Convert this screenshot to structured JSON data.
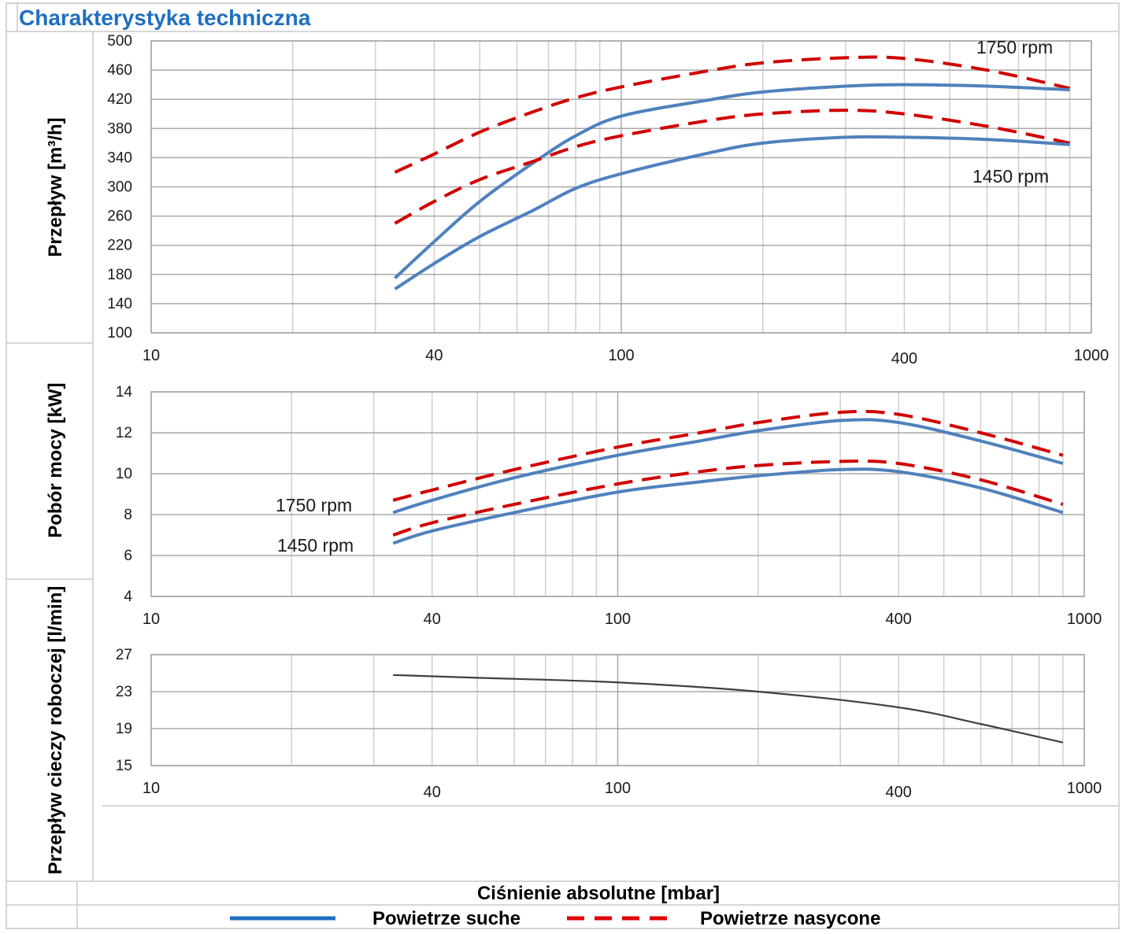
{
  "page": {
    "title": "Charakterystyka techniczna",
    "x_axis_label": "Ciśnienie absolutne [mbar]",
    "legend": [
      {
        "label": "Powietrze suche",
        "style": "solid",
        "color": "#4f81bd"
      },
      {
        "label": "Powietrze nasycone",
        "style": "dashed",
        "color": "#d00000"
      }
    ]
  },
  "chart_data": [
    {
      "type": "line",
      "name": "flow",
      "ylabel": "Przepływ [m³/h]",
      "x_scale": "log",
      "xlim": [
        10,
        1000
      ],
      "x_tick_labels": [
        "10",
        "40",
        "100",
        "400",
        "1000"
      ],
      "x_tick_values": [
        10,
        40,
        100,
        400,
        1000
      ],
      "ylim": [
        100,
        500
      ],
      "y_ticks": [
        100,
        140,
        180,
        220,
        260,
        300,
        340,
        380,
        420,
        460,
        500
      ],
      "annotations": [
        "1750 rpm",
        "1450 rpm"
      ],
      "series": [
        {
          "name": "Powietrze nasycone 1750 rpm",
          "style": "dashed",
          "x": [
            33,
            40,
            50,
            65,
            80,
            100,
            150,
            200,
            300,
            400,
            600,
            900
          ],
          "y": [
            320,
            345,
            375,
            403,
            422,
            437,
            458,
            470,
            477,
            476,
            460,
            435
          ]
        },
        {
          "name": "Powietrze suche 1750 rpm",
          "style": "solid",
          "x": [
            33,
            40,
            50,
            65,
            80,
            100,
            150,
            200,
            300,
            400,
            600,
            900
          ],
          "y": [
            175,
            225,
            280,
            333,
            370,
            397,
            418,
            430,
            438,
            440,
            438,
            433
          ]
        },
        {
          "name": "Powietrze nasycone 1450 rpm",
          "style": "dashed",
          "x": [
            33,
            40,
            50,
            65,
            80,
            100,
            150,
            200,
            300,
            400,
            600,
            900
          ],
          "y": [
            250,
            280,
            310,
            335,
            355,
            370,
            390,
            400,
            405,
            400,
            383,
            360
          ]
        },
        {
          "name": "Powietrze suche 1450 rpm",
          "style": "solid",
          "x": [
            33,
            40,
            50,
            65,
            80,
            100,
            150,
            200,
            300,
            400,
            600,
            900
          ],
          "y": [
            160,
            195,
            232,
            268,
            298,
            318,
            345,
            360,
            368,
            368,
            365,
            358
          ]
        }
      ]
    },
    {
      "type": "line",
      "name": "power",
      "ylabel": "Pobór mocy [kW]",
      "x_scale": "log",
      "xlim": [
        10,
        1000
      ],
      "x_tick_labels": [
        "10",
        "40",
        "100",
        "400",
        "1000"
      ],
      "x_tick_values": [
        10,
        40,
        100,
        400,
        1000
      ],
      "ylim": [
        4,
        14
      ],
      "y_ticks": [
        4,
        6,
        8,
        10,
        12,
        14
      ],
      "annotations": [
        "1750 rpm",
        "1450 rpm"
      ],
      "series": [
        {
          "name": "Powietrze nasycone 1750 rpm",
          "style": "dashed",
          "x": [
            33,
            40,
            60,
            100,
            150,
            200,
            300,
            400,
            600,
            900
          ],
          "y": [
            8.7,
            9.2,
            10.2,
            11.3,
            12.0,
            12.5,
            13.0,
            12.9,
            12.0,
            10.9
          ]
        },
        {
          "name": "Powietrze suche 1750 rpm",
          "style": "solid",
          "x": [
            33,
            40,
            60,
            100,
            150,
            200,
            300,
            400,
            600,
            900
          ],
          "y": [
            8.1,
            8.7,
            9.8,
            10.9,
            11.6,
            12.1,
            12.6,
            12.5,
            11.6,
            10.5
          ]
        },
        {
          "name": "Powietrze nasycone 1450 rpm",
          "style": "dashed",
          "x": [
            33,
            40,
            60,
            100,
            150,
            200,
            300,
            400,
            600,
            900
          ],
          "y": [
            7.0,
            7.6,
            8.5,
            9.5,
            10.1,
            10.4,
            10.6,
            10.5,
            9.7,
            8.5
          ]
        },
        {
          "name": "Powietrze suche 1450 rpm",
          "style": "solid",
          "x": [
            33,
            40,
            60,
            100,
            150,
            200,
            300,
            400,
            600,
            900
          ],
          "y": [
            6.6,
            7.2,
            8.1,
            9.1,
            9.6,
            9.9,
            10.2,
            10.1,
            9.3,
            8.1
          ]
        }
      ]
    },
    {
      "type": "line",
      "name": "liquid",
      "ylabel": "Przepływ cieczy roboczej [l/min]",
      "x_scale": "log",
      "xlim": [
        10,
        1000
      ],
      "x_tick_labels": [
        "10",
        "40",
        "100",
        "400",
        "1000"
      ],
      "x_tick_values": [
        10,
        40,
        100,
        400,
        1000
      ],
      "ylim": [
        15,
        27
      ],
      "y_ticks": [
        15,
        19,
        23,
        27
      ],
      "series": [
        {
          "name": "Przepływ cieczy roboczej",
          "style": "solid",
          "color": "#404040",
          "x": [
            33,
            50,
            100,
            200,
            400,
            600,
            900
          ],
          "y": [
            24.8,
            24.5,
            24.0,
            23.0,
            21.3,
            19.5,
            17.5
          ]
        }
      ]
    }
  ]
}
